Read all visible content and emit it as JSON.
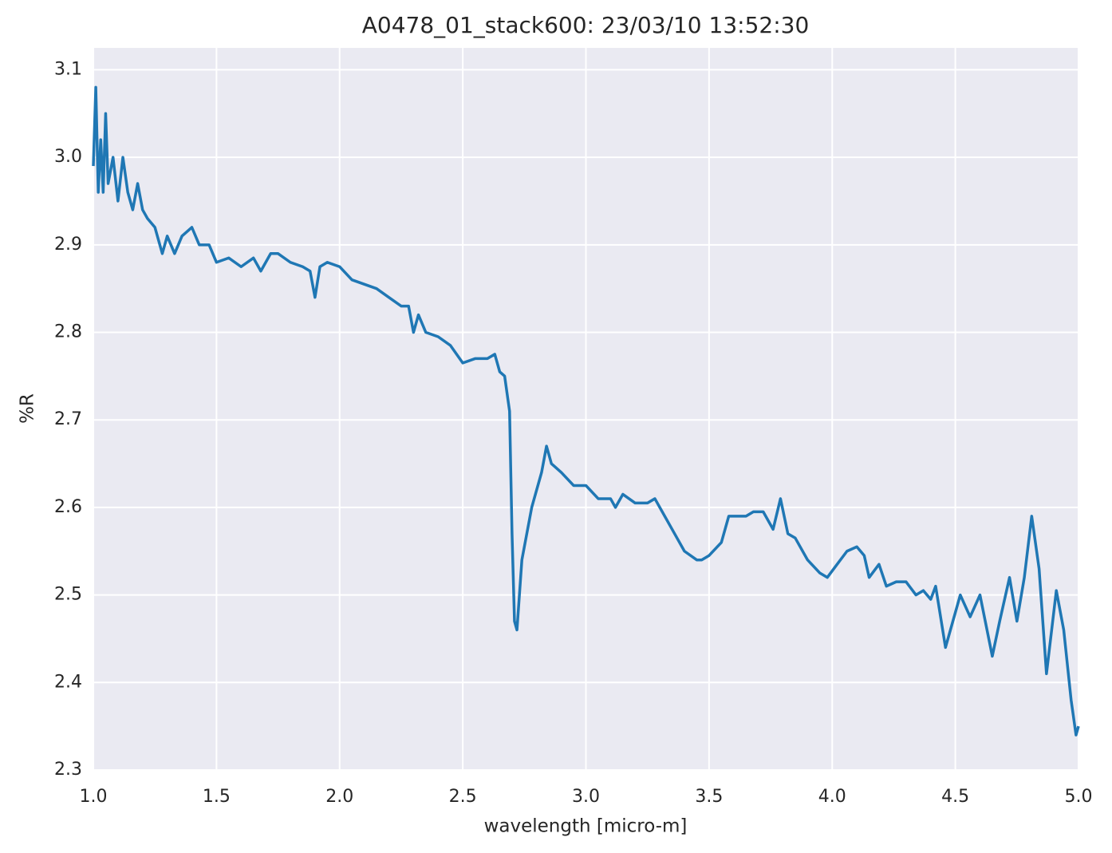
{
  "chart_data": {
    "type": "line",
    "title": "A0478_01_stack600:  23/03/10 13:52:30",
    "xlabel": "wavelength [micro-m]",
    "ylabel": "%R",
    "xlim": [
      1,
      5
    ],
    "ylim": [
      2.3,
      3.125
    ],
    "xticks": [
      {
        "value": 1,
        "label": "1.0"
      },
      1.5,
      {
        "value": 2,
        "label": "2.0"
      },
      2.5,
      {
        "value": 3,
        "label": "3.0"
      },
      3.5,
      {
        "value": 4,
        "label": "4.0"
      },
      4.5,
      {
        "value": 5,
        "label": "5.0"
      }
    ],
    "yticks": [
      2.3,
      2.4,
      2.5,
      2.6,
      2.7,
      2.8,
      2.9,
      {
        "value": 3,
        "label": "3.0"
      },
      3.1
    ],
    "grid": true,
    "background": "#eaeaf2",
    "series": [
      {
        "name": "%R",
        "color": "#1f77b4",
        "x": [
          1.0,
          1.01,
          1.02,
          1.03,
          1.04,
          1.05,
          1.06,
          1.08,
          1.1,
          1.12,
          1.14,
          1.16,
          1.18,
          1.2,
          1.22,
          1.25,
          1.28,
          1.3,
          1.33,
          1.36,
          1.4,
          1.43,
          1.47,
          1.5,
          1.55,
          1.6,
          1.65,
          1.68,
          1.72,
          1.75,
          1.8,
          1.85,
          1.88,
          1.9,
          1.92,
          1.95,
          2.0,
          2.05,
          2.1,
          2.15,
          2.2,
          2.25,
          2.28,
          2.3,
          2.32,
          2.35,
          2.4,
          2.45,
          2.5,
          2.55,
          2.6,
          2.63,
          2.65,
          2.67,
          2.69,
          2.7,
          2.71,
          2.72,
          2.74,
          2.78,
          2.82,
          2.84,
          2.86,
          2.9,
          2.95,
          3.0,
          3.05,
          3.1,
          3.12,
          3.15,
          3.2,
          3.25,
          3.28,
          3.32,
          3.36,
          3.4,
          3.45,
          3.47,
          3.5,
          3.55,
          3.58,
          3.62,
          3.65,
          3.68,
          3.72,
          3.76,
          3.79,
          3.82,
          3.85,
          3.9,
          3.95,
          3.98,
          4.02,
          4.06,
          4.1,
          4.13,
          4.15,
          4.19,
          4.22,
          4.26,
          4.3,
          4.34,
          4.37,
          4.4,
          4.42,
          4.46,
          4.49,
          4.52,
          4.56,
          4.6,
          4.65,
          4.68,
          4.72,
          4.75,
          4.78,
          4.81,
          4.84,
          4.87,
          4.91,
          4.94,
          4.97,
          4.99,
          5.0
        ],
        "values": [
          2.99,
          3.08,
          2.96,
          3.02,
          2.96,
          3.05,
          2.97,
          3.0,
          2.95,
          3.0,
          2.96,
          2.94,
          2.97,
          2.94,
          2.93,
          2.92,
          2.89,
          2.91,
          2.89,
          2.91,
          2.92,
          2.9,
          2.9,
          2.88,
          2.885,
          2.875,
          2.885,
          2.87,
          2.89,
          2.89,
          2.88,
          2.875,
          2.87,
          2.84,
          2.875,
          2.88,
          2.875,
          2.86,
          2.855,
          2.85,
          2.84,
          2.83,
          2.83,
          2.8,
          2.82,
          2.8,
          2.795,
          2.785,
          2.765,
          2.77,
          2.77,
          2.775,
          2.755,
          2.75,
          2.71,
          2.57,
          2.47,
          2.46,
          2.54,
          2.6,
          2.64,
          2.67,
          2.65,
          2.64,
          2.625,
          2.625,
          2.61,
          2.61,
          2.6,
          2.615,
          2.605,
          2.605,
          2.61,
          2.59,
          2.57,
          2.55,
          2.54,
          2.54,
          2.545,
          2.56,
          2.59,
          2.59,
          2.59,
          2.595,
          2.595,
          2.575,
          2.61,
          2.57,
          2.565,
          2.54,
          2.525,
          2.52,
          2.535,
          2.55,
          2.555,
          2.545,
          2.52,
          2.535,
          2.51,
          2.515,
          2.515,
          2.5,
          2.505,
          2.495,
          2.51,
          2.44,
          2.47,
          2.5,
          2.475,
          2.5,
          2.43,
          2.47,
          2.52,
          2.47,
          2.52,
          2.59,
          2.53,
          2.41,
          2.505,
          2.46,
          2.38,
          2.34,
          2.35
        ]
      }
    ]
  }
}
